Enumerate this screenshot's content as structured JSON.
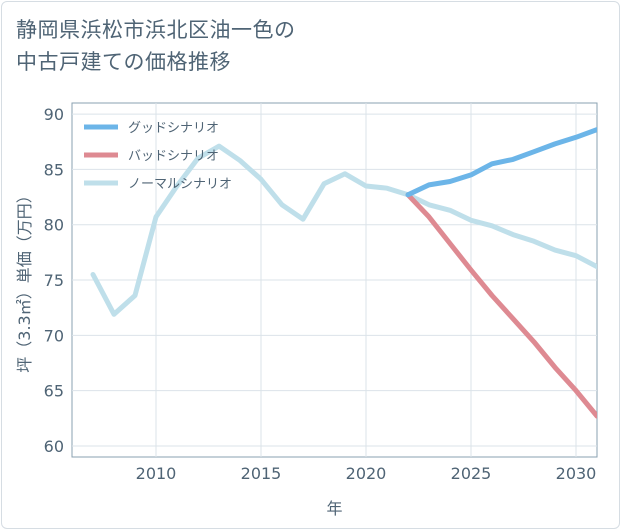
{
  "title_lines": [
    "静岡県浜松市浜北区油一色の",
    "中古戸建ての価格推移"
  ],
  "chart_data": {
    "type": "line",
    "xlabel": "年",
    "ylabel": "坪（3.3㎡）単価（万円）",
    "xlim": [
      2006,
      2031
    ],
    "ylim": [
      59,
      91
    ],
    "x_ticks": [
      2010,
      2015,
      2020,
      2025,
      2030
    ],
    "y_ticks": [
      60,
      65,
      70,
      75,
      80,
      85,
      90
    ],
    "grid": true,
    "legend_position": "top-left",
    "series": [
      {
        "name": "グッドシナリオ",
        "color": "#6cb5e8",
        "x": [
          2022,
          2023,
          2024,
          2025,
          2026,
          2027,
          2028,
          2029,
          2030,
          2031
        ],
        "y": [
          82.7,
          83.6,
          83.9,
          84.5,
          85.5,
          85.9,
          86.6,
          87.3,
          87.9,
          88.6
        ]
      },
      {
        "name": "バッドシナリオ",
        "color": "#de8a92",
        "x": [
          2022,
          2023,
          2024,
          2025,
          2026,
          2027,
          2028,
          2029,
          2030,
          2031
        ],
        "y": [
          82.7,
          80.7,
          78.3,
          75.9,
          73.6,
          71.5,
          69.4,
          67.1,
          65.0,
          62.7
        ]
      },
      {
        "name": "ノーマルシナリオ",
        "color": "#bfdfea",
        "x": [
          2007,
          2008,
          2009,
          2010,
          2011,
          2012,
          2013,
          2014,
          2015,
          2016,
          2017,
          2018,
          2019,
          2020,
          2021,
          2022,
          2023,
          2024,
          2025,
          2026,
          2027,
          2028,
          2029,
          2030,
          2031
        ],
        "y": [
          75.5,
          71.9,
          73.6,
          80.7,
          83.5,
          86.0,
          87.1,
          85.8,
          84.1,
          81.8,
          80.5,
          83.7,
          84.6,
          83.5,
          83.3,
          82.7,
          81.8,
          81.3,
          80.4,
          79.9,
          79.1,
          78.5,
          77.7,
          77.2,
          76.2
        ]
      }
    ]
  }
}
